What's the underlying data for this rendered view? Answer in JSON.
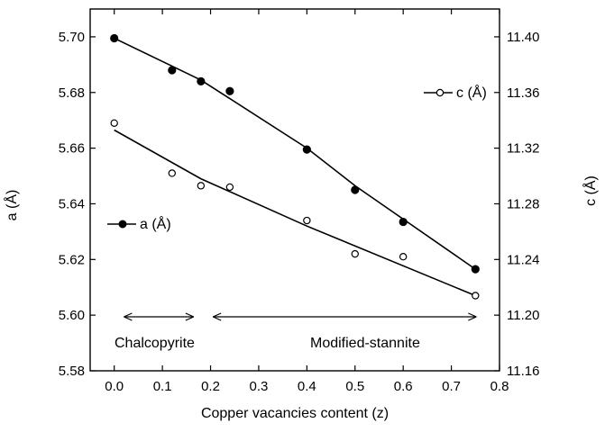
{
  "chart_data": {
    "type": "scatter",
    "xlabel": "Copper vacancies content (z)",
    "ylabel_left": "a (Å)",
    "ylabel_right": "c (Å)",
    "xlim": [
      -0.05,
      0.8
    ],
    "ylim_left": [
      5.58,
      5.71
    ],
    "ylim_right": [
      11.16,
      11.42
    ],
    "x_ticks": [
      0.0,
      0.1,
      0.2,
      0.3,
      0.4,
      0.5,
      0.6,
      0.7,
      0.8
    ],
    "x_tick_labels": [
      "0.0",
      "0.1",
      "0.2",
      "0.3",
      "0.4",
      "0.5",
      "0.6",
      "0.7",
      "0.8"
    ],
    "y_left_ticks": [
      5.58,
      5.6,
      5.62,
      5.64,
      5.66,
      5.68,
      5.7
    ],
    "y_left_tick_labels": [
      "5.58",
      "5.60",
      "5.62",
      "5.64",
      "5.66",
      "5.68",
      "5.70"
    ],
    "y_right_ticks": [
      11.16,
      11.2,
      11.24,
      11.28,
      11.32,
      11.36,
      11.4
    ],
    "y_right_tick_labels": [
      "11.16",
      "11.20",
      "11.24",
      "11.28",
      "11.32",
      "11.36",
      "11.40"
    ],
    "series": [
      {
        "name": "a (Å)",
        "axis": "left",
        "marker": "filled-circle",
        "points": [
          [
            0.0,
            5.6995
          ],
          [
            0.12,
            5.688
          ],
          [
            0.18,
            5.684
          ],
          [
            0.24,
            5.6805
          ],
          [
            0.4,
            5.6595
          ],
          [
            0.5,
            5.645
          ],
          [
            0.6,
            5.6335
          ],
          [
            0.75,
            5.6165
          ]
        ],
        "fit_line": [
          [
            0.0,
            5.6995
          ],
          [
            0.18,
            5.6845
          ],
          [
            0.4,
            5.66
          ],
          [
            0.5,
            5.6465
          ],
          [
            0.75,
            5.6165
          ]
        ]
      },
      {
        "name": "c (Å)",
        "axis": "right",
        "marker": "open-circle",
        "points": [
          [
            0.0,
            11.338
          ],
          [
            0.12,
            11.302
          ],
          [
            0.18,
            11.293
          ],
          [
            0.24,
            11.292
          ],
          [
            0.4,
            11.268
          ],
          [
            0.5,
            11.244
          ],
          [
            0.6,
            11.242
          ],
          [
            0.75,
            11.214
          ]
        ],
        "fit_line": [
          [
            0.0,
            11.333
          ],
          [
            0.18,
            11.298
          ],
          [
            0.4,
            11.264
          ],
          [
            0.75,
            11.214
          ]
        ]
      }
    ],
    "annotations": [
      {
        "label": "Chalcopyrite",
        "arrow_from": 0.02,
        "arrow_to": 0.165
      },
      {
        "label": "Modified-stannite",
        "arrow_from": 0.205,
        "arrow_to": 0.752
      }
    ],
    "legend": "inline labels near series",
    "grid": false,
    "colors": {
      "line": "#000000",
      "background": "#ffffff"
    }
  }
}
